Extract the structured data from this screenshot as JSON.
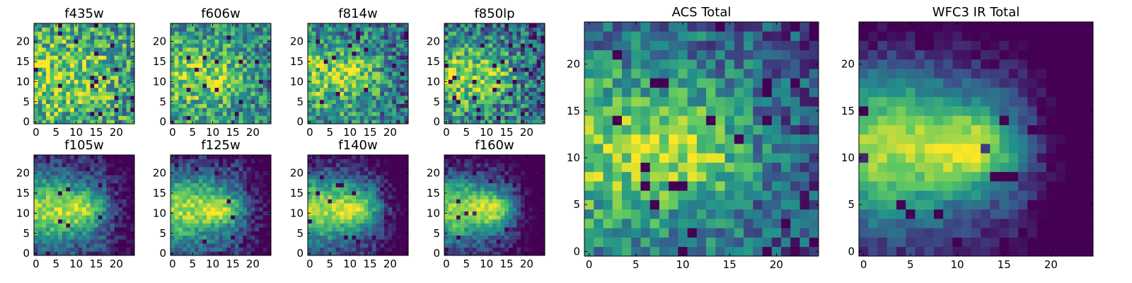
{
  "chart_data": {
    "type": "heatmap",
    "grid_size": [
      25,
      25
    ],
    "colormap": "viridis",
    "colorscale": [
      "#440154",
      "#3b528b",
      "#21918c",
      "#5ec962",
      "#fde725"
    ],
    "panels": [
      {
        "title": "f435w",
        "noise": 0.34,
        "smooth": 0.2,
        "base": 0.68,
        "x_ticks": [
          "0",
          "5",
          "10",
          "15",
          "20"
        ],
        "y_ticks": [
          "0",
          "5",
          "10",
          "15",
          "20"
        ],
        "xlim": [
          0,
          25
        ],
        "ylim": [
          0,
          25
        ]
      },
      {
        "title": "f606w",
        "noise": 0.3,
        "smooth": 0.25,
        "base": 0.62,
        "x_ticks": [
          "0",
          "5",
          "10",
          "15",
          "20"
        ],
        "y_ticks": [
          "0",
          "5",
          "10",
          "15",
          "20"
        ],
        "xlim": [
          0,
          25
        ],
        "ylim": [
          0,
          25
        ]
      },
      {
        "title": "f814w",
        "noise": 0.3,
        "smooth": 0.35,
        "base": 0.58,
        "x_ticks": [
          "0",
          "5",
          "10",
          "15",
          "20"
        ],
        "y_ticks": [
          "0",
          "5",
          "10",
          "15",
          "20"
        ],
        "xlim": [
          0,
          25
        ],
        "ylim": [
          0,
          25
        ]
      },
      {
        "title": "f850lp",
        "noise": 0.32,
        "smooth": 0.35,
        "base": 0.55,
        "x_ticks": [
          "0",
          "5",
          "10",
          "15",
          "20"
        ],
        "y_ticks": [
          "0",
          "5",
          "10",
          "15",
          "20"
        ],
        "xlim": [
          0,
          25
        ],
        "ylim": [
          0,
          25
        ]
      },
      {
        "title": "f105w",
        "noise": 0.16,
        "smooth": 0.7,
        "base": 0.45,
        "x_ticks": [
          "0",
          "5",
          "10",
          "15",
          "20"
        ],
        "y_ticks": [
          "0",
          "5",
          "10",
          "15",
          "20"
        ],
        "xlim": [
          0,
          25
        ],
        "ylim": [
          0,
          25
        ]
      },
      {
        "title": "f125w",
        "noise": 0.16,
        "smooth": 0.7,
        "base": 0.45,
        "x_ticks": [
          "0",
          "5",
          "10",
          "15",
          "20"
        ],
        "y_ticks": [
          "0",
          "5",
          "10",
          "15",
          "20"
        ],
        "xlim": [
          0,
          25
        ],
        "ylim": [
          0,
          25
        ]
      },
      {
        "title": "f140w",
        "noise": 0.14,
        "smooth": 0.75,
        "base": 0.42,
        "x_ticks": [
          "0",
          "5",
          "10",
          "15",
          "20"
        ],
        "y_ticks": [
          "0",
          "5",
          "10",
          "15",
          "20"
        ],
        "xlim": [
          0,
          25
        ],
        "ylim": [
          0,
          25
        ]
      },
      {
        "title": "f160w",
        "noise": 0.14,
        "smooth": 0.8,
        "base": 0.38,
        "x_ticks": [
          "0",
          "5",
          "10",
          "15",
          "20"
        ],
        "y_ticks": [
          "0",
          "5",
          "10",
          "15",
          "20"
        ],
        "xlim": [
          0,
          25
        ],
        "ylim": [
          0,
          25
        ]
      },
      {
        "title": "ACS Total",
        "noise": 0.24,
        "smooth": 0.45,
        "base": 0.55,
        "x_ticks": [
          "0",
          "5",
          "10",
          "15",
          "20"
        ],
        "y_ticks": [
          "0",
          "5",
          "10",
          "15",
          "20"
        ],
        "xlim": [
          0,
          25
        ],
        "ylim": [
          0,
          25
        ]
      },
      {
        "title": "WFC3 IR Total",
        "noise": 0.1,
        "smooth": 0.85,
        "base": 0.38,
        "x_ticks": [
          "0",
          "5",
          "10",
          "15",
          "20"
        ],
        "y_ticks": [
          "0",
          "5",
          "10",
          "15",
          "20"
        ],
        "xlim": [
          0,
          25
        ],
        "ylim": [
          0,
          25
        ]
      }
    ]
  }
}
